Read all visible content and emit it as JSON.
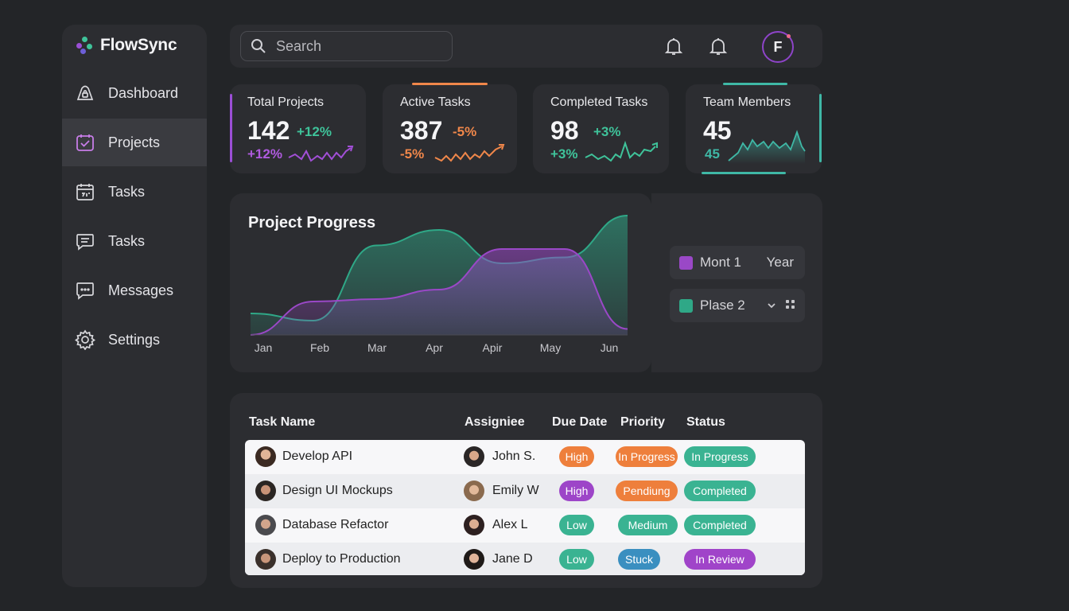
{
  "brand": {
    "name": "FlowSync"
  },
  "sidebar": {
    "items": [
      {
        "label": "Dashboard",
        "icon": "lock-bell-icon",
        "active": false
      },
      {
        "label": "Projects",
        "icon": "calendar-check-icon",
        "active": true
      },
      {
        "label": "Tasks",
        "icon": "calendar-icon",
        "active": false
      },
      {
        "label": "Tasks",
        "icon": "chat-lines-icon",
        "active": false
      },
      {
        "label": "Messages",
        "icon": "chat-dots-icon",
        "active": false
      },
      {
        "label": "Settings",
        "icon": "gear-icon",
        "active": false
      }
    ]
  },
  "topbar": {
    "search_placeholder": "Search",
    "avatar_initial": "F"
  },
  "stats": [
    {
      "label": "Total Projects",
      "value": "142",
      "delta": "+12%",
      "delta2": "+12%",
      "color": "#9b4fd6"
    },
    {
      "label": "Active Tasks",
      "value": "387",
      "delta": "-5%",
      "delta2": "-5%",
      "color": "#f0874a"
    },
    {
      "label": "Completed Tasks",
      "value": "98",
      "delta": "+3%",
      "delta2": "+3%",
      "color": "#3fb896"
    },
    {
      "label": "Team Members",
      "value": "45",
      "delta": "",
      "delta2": "45",
      "color": "#3fb8a6"
    }
  ],
  "chart_data": {
    "type": "area",
    "title": "Project Progress",
    "categories": [
      "Jan",
      "Feb",
      "Mar",
      "Apr",
      "Apir",
      "May",
      "Jun"
    ],
    "series": [
      {
        "name": "Mont 1",
        "color": "#9a48c7",
        "values": [
          0,
          28,
          30,
          38,
          72,
          72,
          5
        ]
      },
      {
        "name": "Plase 2",
        "color": "#2fa887",
        "values": [
          18,
          12,
          75,
          88,
          60,
          65,
          100
        ]
      }
    ],
    "legend_extra": "Year"
  },
  "table": {
    "headers": [
      "Task Name",
      "Assigniee",
      "Due Date",
      "Priority",
      "Status"
    ],
    "rows": [
      {
        "task": "Develop API",
        "assignee": "John S.",
        "due": "High",
        "priority": "In Progress",
        "status": "In Progress",
        "due_color": "#ee7f3c",
        "priority_color": "#ee7f3c",
        "status_color": "#3ab392"
      },
      {
        "task": "Design UI Mockups",
        "assignee": "Emily W",
        "due": "High",
        "priority": "Pendiung",
        "status": "Completed",
        "due_color": "#9d45c8",
        "priority_color": "#ee7f3c",
        "status_color": "#3ab392"
      },
      {
        "task": "Database Refactor",
        "assignee": "Alex L",
        "due": "Low",
        "priority": "Medium",
        "status": "Completed",
        "due_color": "#3ab392",
        "priority_color": "#3ab392",
        "status_color": "#3ab392"
      },
      {
        "task": "Deploy to Production",
        "assignee": "Jane D",
        "due": "Low",
        "priority": "Stuck",
        "status": "In Review",
        "due_color": "#3ab392",
        "priority_color": "#3a8fc0",
        "status_color": "#a044c9"
      }
    ]
  }
}
